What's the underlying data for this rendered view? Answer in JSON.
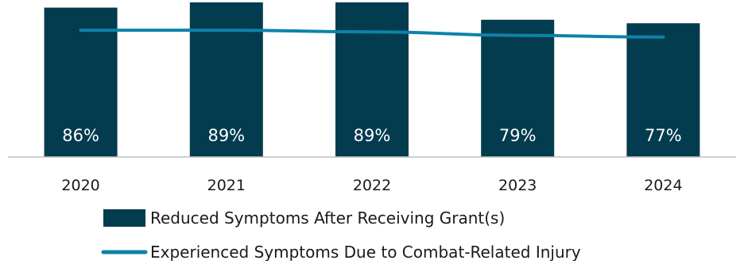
{
  "chart_data": {
    "type": "bar",
    "categories": [
      "2020",
      "2021",
      "2022",
      "2023",
      "2024"
    ],
    "series": [
      {
        "name": "Reduced Symptoms After Receiving Grant(s)",
        "kind": "bar",
        "values": [
          86,
          89,
          89,
          79,
          77
        ],
        "labels": [
          "86%",
          "89%",
          "89%",
          "79%",
          "77%"
        ],
        "color": "#033b4f"
      },
      {
        "name": "Experienced Symptoms Due to Combat-Related Injury",
        "kind": "line",
        "values": [
          73,
          73,
          72,
          70,
          69
        ],
        "color": "#0d83aa"
      }
    ],
    "ylim": [
      0,
      89
    ],
    "legend_position": "bottom",
    "grid": false
  }
}
